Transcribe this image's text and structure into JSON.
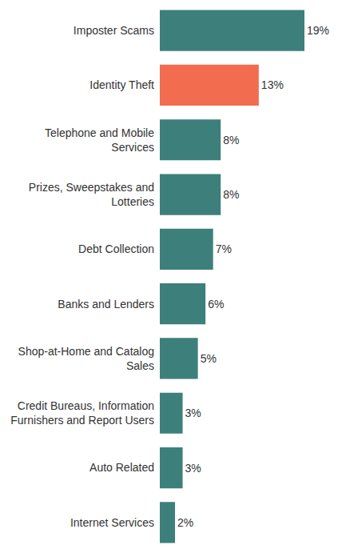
{
  "chart_data": {
    "type": "bar",
    "orientation": "horizontal",
    "categories": [
      "Imposter Scams",
      "Identity Theft",
      "Telephone and Mobile Services",
      "Prizes, Sweepstakes and Lotteries",
      "Debt Collection",
      "Banks and Lenders",
      "Shop-at-Home and Catalog Sales",
      "Credit Bureaus, Information Furnishers and Report Users",
      "Auto Related",
      "Internet Services"
    ],
    "values": [
      19,
      13,
      8,
      8,
      7,
      6,
      5,
      3,
      3,
      2
    ],
    "value_labels": [
      "19%",
      "13%",
      "8%",
      "8%",
      "7%",
      "6%",
      "5%",
      "3%",
      "3%",
      "2%"
    ],
    "colors": [
      "#3d7f7b",
      "#f26c50",
      "#3d7f7b",
      "#3d7f7b",
      "#3d7f7b",
      "#3d7f7b",
      "#3d7f7b",
      "#3d7f7b",
      "#3d7f7b",
      "#3d7f7b"
    ],
    "xlim": [
      0,
      19
    ],
    "xticks": [],
    "grid": false,
    "data_labels": true,
    "tick_labels": "y"
  }
}
